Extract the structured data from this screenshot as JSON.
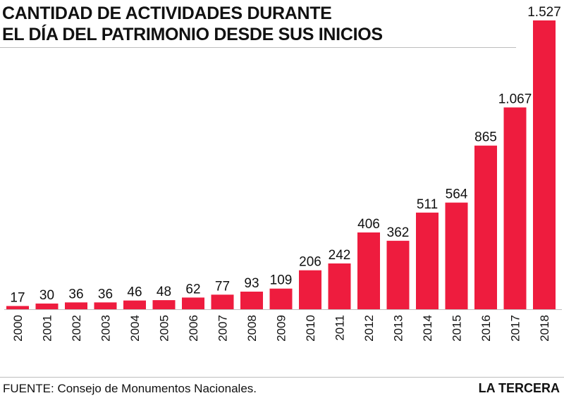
{
  "title_lines": [
    "CANTIDAD DE ACTIVIDADES DURANTE",
    "EL DÍA DEL  PATRIMONIO DESDE SUS INICIOS"
  ],
  "source": "FUENTE: Consejo de Monumentos Nacionales.",
  "brand": "LA TERCERA",
  "colors": {
    "bar": "#ee1c3e",
    "text": "#111111",
    "rule": "#bdbdbd"
  },
  "chart_data": {
    "type": "bar",
    "categories": [
      "2000",
      "2001",
      "2002",
      "2003",
      "2004",
      "2005",
      "2006",
      "2007",
      "2008",
      "2009",
      "2010",
      "2011",
      "2012",
      "2013",
      "2014",
      "2015",
      "2016",
      "2017",
      "2018"
    ],
    "values": [
      17,
      30,
      36,
      36,
      46,
      48,
      62,
      77,
      93,
      109,
      206,
      242,
      406,
      362,
      511,
      564,
      865,
      1067,
      1527
    ],
    "value_labels": [
      "17",
      "30",
      "36",
      "36",
      "46",
      "48",
      "62",
      "77",
      "93",
      "109",
      "206",
      "242",
      "406",
      "362",
      "511",
      "564",
      "865",
      "1.067",
      "1.527"
    ],
    "title": "CANTIDAD DE ACTIVIDADES DURANTE EL DÍA DEL  PATRIMONIO DESDE SUS INICIOS",
    "xlabel": "",
    "ylabel": "",
    "ylim": [
      0,
      1527
    ],
    "grid": false,
    "legend": "none",
    "x_tick_rotation": "vertical"
  }
}
